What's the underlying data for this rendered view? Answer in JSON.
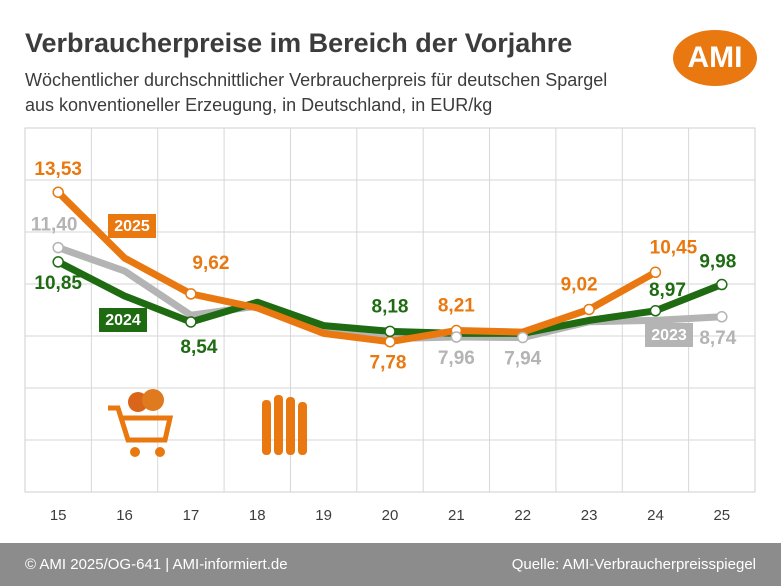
{
  "chart_data": {
    "type": "line",
    "title": "Verbraucherpreise im Bereich der Vorjahre",
    "subtitle": [
      "Wöchentlicher durchschnittlicher Verbraucherpreis für deutschen Spargel",
      "aus konventioneller Erzeugung, in Deutschland, in EUR/kg"
    ],
    "logo": "AMI",
    "categories": [
      "15",
      "16",
      "17",
      "18",
      "19",
      "20",
      "21",
      "22",
      "23",
      "24",
      "25"
    ],
    "ylim": [
      2,
      16
    ],
    "yticks": [
      4,
      6,
      8,
      10,
      12,
      14
    ],
    "grid": true,
    "series": [
      {
        "name": "2025",
        "color": "#e8780f",
        "values": [
          13.53,
          11.0,
          9.62,
          9.08,
          8.1,
          7.78,
          8.21,
          8.15,
          9.02,
          10.45,
          null
        ],
        "value_labels": [
          "13,53",
          null,
          "9,62",
          null,
          null,
          "7,78",
          "8,21",
          null,
          "9,02",
          "10,45",
          null
        ]
      },
      {
        "name": "2024",
        "color": "#1e6b12",
        "values": [
          10.85,
          9.54,
          8.54,
          9.3,
          8.4,
          8.18,
          8.1,
          8.1,
          8.6,
          8.97,
          9.98
        ],
        "value_labels": [
          "10,85",
          null,
          "8,54",
          null,
          null,
          "8,18",
          null,
          null,
          null,
          "8,97",
          "9,98"
        ]
      },
      {
        "name": "2023",
        "color": "#b4b4b4",
        "values": [
          11.4,
          10.5,
          8.8,
          9.15,
          8.35,
          7.9,
          7.96,
          7.94,
          8.55,
          8.6,
          8.74
        ],
        "value_labels": [
          "11,40",
          null,
          null,
          null,
          null,
          null,
          "7,96",
          "7,94",
          null,
          null,
          "8,74"
        ]
      }
    ],
    "footer_left": "© AMI 2025/OG-641 | AMI-informiert.de",
    "footer_right": "Quelle: AMI-Verbraucherpreisspiegel"
  }
}
